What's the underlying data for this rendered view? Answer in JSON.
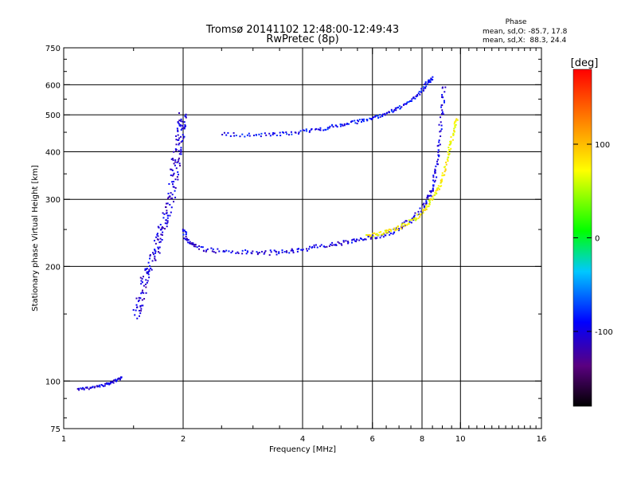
{
  "header": {
    "title": "Tromsø 20141102 12:48:00-12:49:43",
    "subtitle": "RwPretec (8p)"
  },
  "phase_stats": {
    "heading": "Phase",
    "line_o": "mean, sd,O: -85.7, 17.8",
    "line_x": "mean, sd,X:  88.3, 24.4"
  },
  "chart_data": {
    "type": "scatter",
    "xlabel": "Frequency [MHz]",
    "ylabel": "Stationary phase Virtual Height [km]",
    "x_scale": "log2",
    "y_scale": "log",
    "xlim": [
      1,
      16
    ],
    "ylim": [
      75,
      750
    ],
    "xticks": [
      1,
      2,
      4,
      6,
      8,
      10,
      16
    ],
    "xtick_labels": [
      "1",
      "2",
      "4",
      "6",
      "8",
      "10",
      "16"
    ],
    "yticks": [
      75,
      100,
      200,
      300,
      400,
      500,
      600,
      750
    ],
    "ytick_labels": [
      "75",
      "100",
      "200",
      "300",
      "400",
      "500",
      "600",
      "750"
    ],
    "grid_x": [
      2,
      4,
      6,
      8,
      10
    ],
    "grid_y": [
      100,
      200,
      300,
      400,
      500,
      600
    ],
    "grid": true,
    "colorbar": {
      "label": "[deg]",
      "range": [
        -180,
        180
      ],
      "ticks": [
        100,
        0,
        -100
      ],
      "tick_labels": [
        "100",
        "0",
        "-100"
      ]
    },
    "series": [
      {
        "color_phase": -105,
        "spread": 0.05,
        "points": [
          [
            1.52,
            148
          ],
          [
            1.55,
            160
          ],
          [
            1.58,
            175
          ],
          [
            1.62,
            190
          ],
          [
            1.66,
            205
          ],
          [
            1.7,
            222
          ],
          [
            1.74,
            238
          ],
          [
            1.78,
            255
          ],
          [
            1.82,
            275
          ],
          [
            1.86,
            300
          ],
          [
            1.89,
            330
          ],
          [
            1.91,
            360
          ],
          [
            1.93,
            390
          ],
          [
            1.95,
            420
          ],
          [
            1.97,
            450
          ],
          [
            1.98,
            475
          ],
          [
            2.0,
            500
          ]
        ]
      },
      {
        "color_phase": -100,
        "spread": 0.02,
        "points": [
          [
            2.0,
            250
          ],
          [
            2.05,
            235
          ],
          [
            2.15,
            225
          ],
          [
            2.4,
            220
          ],
          [
            2.8,
            218
          ],
          [
            3.2,
            217
          ],
          [
            3.6,
            218
          ],
          [
            4.0,
            222
          ],
          [
            4.5,
            226
          ],
          [
            5.0,
            230
          ],
          [
            5.5,
            234
          ],
          [
            6.0,
            238
          ],
          [
            6.5,
            243
          ],
          [
            7.0,
            252
          ],
          [
            7.5,
            265
          ],
          [
            8.0,
            282
          ],
          [
            8.3,
            300
          ],
          [
            8.5,
            320
          ],
          [
            8.7,
            360
          ],
          [
            8.85,
            420
          ],
          [
            9.0,
            520
          ],
          [
            9.1,
            600
          ]
        ]
      },
      {
        "color_phase": -90,
        "spread": 0.015,
        "points": [
          [
            2.5,
            445
          ],
          [
            3.0,
            442
          ],
          [
            3.5,
            445
          ],
          [
            4.0,
            452
          ],
          [
            4.5,
            460
          ],
          [
            5.0,
            470
          ],
          [
            5.5,
            480
          ],
          [
            6.0,
            490
          ],
          [
            6.5,
            505
          ],
          [
            7.0,
            520
          ],
          [
            7.5,
            545
          ],
          [
            8.0,
            580
          ],
          [
            8.3,
            610
          ],
          [
            8.5,
            625
          ]
        ]
      },
      {
        "color_phase": 75,
        "spread": 0.015,
        "points": [
          [
            5.8,
            240
          ],
          [
            6.3,
            244
          ],
          [
            6.8,
            250
          ],
          [
            7.3,
            258
          ],
          [
            7.8,
            270
          ],
          [
            8.2,
            285
          ],
          [
            8.6,
            305
          ],
          [
            8.9,
            330
          ],
          [
            9.2,
            370
          ],
          [
            9.4,
            410
          ],
          [
            9.6,
            450
          ],
          [
            9.8,
            490
          ]
        ]
      },
      {
        "color_phase": -100,
        "spread": 0.01,
        "points": [
          [
            1.08,
            95
          ],
          [
            1.18,
            96
          ],
          [
            1.28,
            98
          ],
          [
            1.35,
            100
          ],
          [
            1.4,
            102
          ]
        ]
      }
    ]
  }
}
